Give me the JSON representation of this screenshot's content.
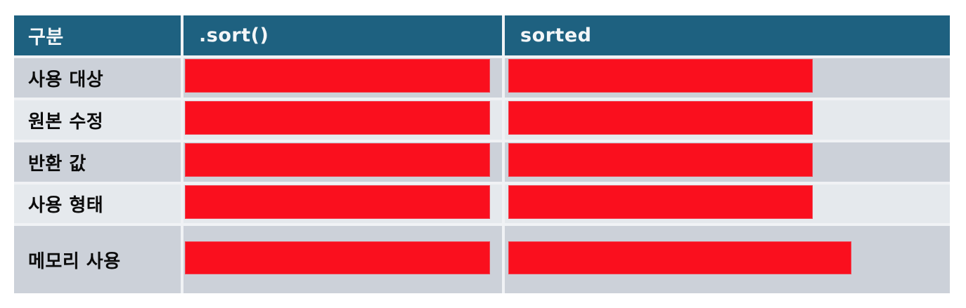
{
  "table": {
    "columns": [
      {
        "label": "구분"
      },
      {
        "label": ".sort()"
      },
      {
        "label": "sorted"
      }
    ],
    "rows": [
      {
        "label": "사용 대상",
        "sort_cell_redacted": true,
        "sorted_cell_redacted": true
      },
      {
        "label": "원본 수정",
        "sort_cell_redacted": true,
        "sorted_cell_redacted": true
      },
      {
        "label": "반환 값",
        "sort_cell_redacted": true,
        "sorted_cell_redacted": true
      },
      {
        "label": "사용 형태",
        "sort_cell_redacted": true,
        "sorted_cell_redacted": true
      },
      {
        "label": "메모리 사용",
        "sort_cell_redacted": true,
        "sorted_cell_redacted": true
      }
    ],
    "colors": {
      "header_background": "#1e6180",
      "header_text": "#f3f6f8",
      "band_dark": "#ccd1d9",
      "band_light": "#e5e9ed",
      "redaction_red": "#fa0f1e",
      "label_text": "#0c0c0c",
      "page_background": "#ffffff"
    }
  }
}
